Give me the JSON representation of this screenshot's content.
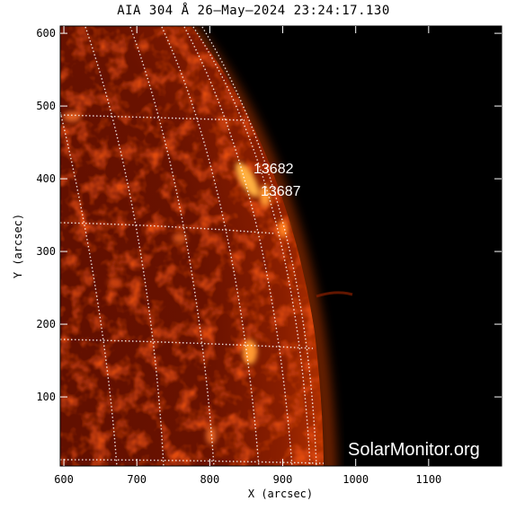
{
  "title": "AIA 304 Å 26–May–2024 23:24:17.130",
  "xlabel": "X (arcsec)",
  "ylabel": "Y (arcsec)",
  "x_ticks": [
    "600",
    "700",
    "800",
    "900",
    "1000",
    "1100"
  ],
  "y_ticks": [
    "100",
    "200",
    "300",
    "400",
    "500",
    "600"
  ],
  "x_tick_values": [
    600,
    700,
    800,
    900,
    1000,
    1100
  ],
  "y_tick_values": [
    100,
    200,
    300,
    400,
    500,
    600
  ],
  "x_range": [
    595,
    1200
  ],
  "y_range": [
    5,
    610
  ],
  "active_regions": [
    {
      "label": "13682",
      "x": 880,
      "y": 415
    },
    {
      "label": "13687",
      "x": 900,
      "y": 385
    }
  ],
  "watermark": "SolarMonitor.org",
  "colors": {
    "background": "#000000",
    "disk": "#7a1500",
    "bright": "#ffb040",
    "grid": "#ffffff"
  }
}
